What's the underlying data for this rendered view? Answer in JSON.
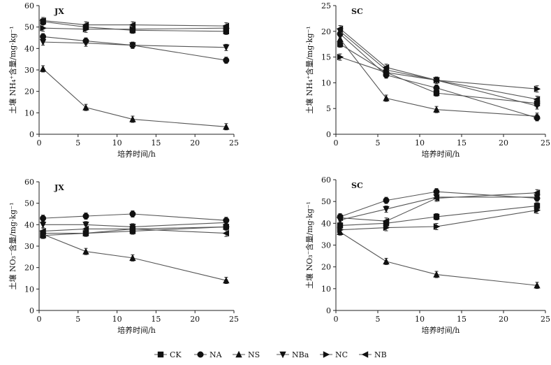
{
  "colors": {
    "line": "#555555",
    "marker": "#111111",
    "axis": "#222222"
  },
  "legend": [
    {
      "name": "CK",
      "marker": "square"
    },
    {
      "name": "NA",
      "marker": "circle"
    },
    {
      "name": "NS",
      "marker": "triangle-up"
    },
    {
      "name": "NBa",
      "marker": "triangle-down"
    },
    {
      "name": "NC",
      "marker": "triangle-right"
    },
    {
      "name": "NB",
      "marker": "triangle-left"
    }
  ],
  "chart_data": [
    {
      "type": "line",
      "panel": "JX",
      "xlabel": "培养时间/h",
      "ylabel": "土壤 NH₄⁺含量/mg·kg⁻¹",
      "xlim": [
        0,
        25
      ],
      "ylim": [
        0,
        60
      ],
      "xticks": [
        0,
        5,
        10,
        15,
        20,
        25
      ],
      "yticks": [
        0,
        10,
        20,
        30,
        40,
        50,
        60
      ],
      "x": [
        0.5,
        6,
        12,
        24
      ],
      "series": [
        {
          "name": "CK",
          "values": [
            52.5,
            50,
            48.5,
            48
          ]
        },
        {
          "name": "NA",
          "values": [
            45.5,
            43.5,
            41.5,
            34.5
          ]
        },
        {
          "name": "NS",
          "values": [
            30.5,
            12.5,
            7,
            3.5
          ]
        },
        {
          "name": "NBa",
          "values": [
            43,
            42.5,
            41.5,
            40.5
          ]
        },
        {
          "name": "NC",
          "values": [
            49.5,
            49,
            49,
            49.5
          ]
        },
        {
          "name": "NB",
          "values": [
            53,
            51,
            51,
            50.5
          ]
        }
      ]
    },
    {
      "type": "line",
      "panel": "SC",
      "xlabel": "培养时间/h",
      "ylabel": "土壤 NH₄⁺含量/mg·kg⁻¹",
      "xlim": [
        0,
        25
      ],
      "ylim": [
        0,
        25
      ],
      "xticks": [
        0,
        5,
        10,
        15,
        20,
        25
      ],
      "yticks": [
        0,
        5,
        10,
        15,
        20,
        25
      ],
      "x": [
        0.5,
        6,
        12,
        24
      ],
      "series": [
        {
          "name": "CK",
          "values": [
            17.5,
            12,
            8,
            6
          ]
        },
        {
          "name": "NA",
          "values": [
            19.5,
            11.5,
            9,
            3.2
          ]
        },
        {
          "name": "NS",
          "values": [
            18.5,
            7,
            4.8,
            3.5
          ]
        },
        {
          "name": "NBa",
          "values": [
            20,
            12.5,
            10.5,
            5.5
          ]
        },
        {
          "name": "NC",
          "values": [
            15,
            12,
            10.5,
            8.8
          ]
        },
        {
          "name": "NB",
          "values": [
            20.5,
            13,
            10.5,
            6.8
          ]
        }
      ]
    },
    {
      "type": "line",
      "panel": "JX",
      "xlabel": "培养时间/h",
      "ylabel": "土壤 NO₃⁻含量/mg·kg⁻¹",
      "xlim": [
        0,
        25
      ],
      "ylim": [
        0,
        60
      ],
      "xticks": [
        0,
        5,
        10,
        15,
        20,
        25
      ],
      "yticks": [
        0,
        10,
        20,
        30,
        40,
        50,
        60
      ],
      "x": [
        0.5,
        6,
        12,
        24
      ],
      "series": [
        {
          "name": "CK",
          "values": [
            35,
            36,
            37,
            39
          ]
        },
        {
          "name": "NA",
          "values": [
            43,
            44,
            45,
            42
          ]
        },
        {
          "name": "NS",
          "values": [
            35.5,
            27.5,
            24.5,
            14
          ]
        },
        {
          "name": "NBa",
          "values": [
            40,
            40,
            39,
            41
          ]
        },
        {
          "name": "NC",
          "values": [
            36,
            36,
            38,
            39
          ]
        },
        {
          "name": "NB",
          "values": [
            37,
            38,
            38,
            36
          ]
        }
      ]
    },
    {
      "type": "line",
      "panel": "SC",
      "xlabel": "培养时间/h",
      "ylabel": "土壤 NO₃⁻含量/mg·kg⁻¹",
      "xlim": [
        0,
        25
      ],
      "ylim": [
        0,
        60
      ],
      "xticks": [
        0,
        5,
        10,
        15,
        20,
        25
      ],
      "yticks": [
        0,
        10,
        20,
        30,
        40,
        50,
        60
      ],
      "x": [
        0.5,
        6,
        12,
        24
      ],
      "series": [
        {
          "name": "CK",
          "values": [
            39,
            40,
            43,
            48
          ]
        },
        {
          "name": "NA",
          "values": [
            43,
            50.5,
            54.5,
            51.5
          ]
        },
        {
          "name": "NS",
          "values": [
            36,
            22.5,
            16.5,
            11.5
          ]
        },
        {
          "name": "NBa",
          "values": [
            41.5,
            46.5,
            52,
            52
          ]
        },
        {
          "name": "NC",
          "values": [
            37,
            38,
            38.5,
            46
          ]
        },
        {
          "name": "NB",
          "values": [
            42.5,
            41,
            51.5,
            54
          ]
        }
      ]
    }
  ]
}
